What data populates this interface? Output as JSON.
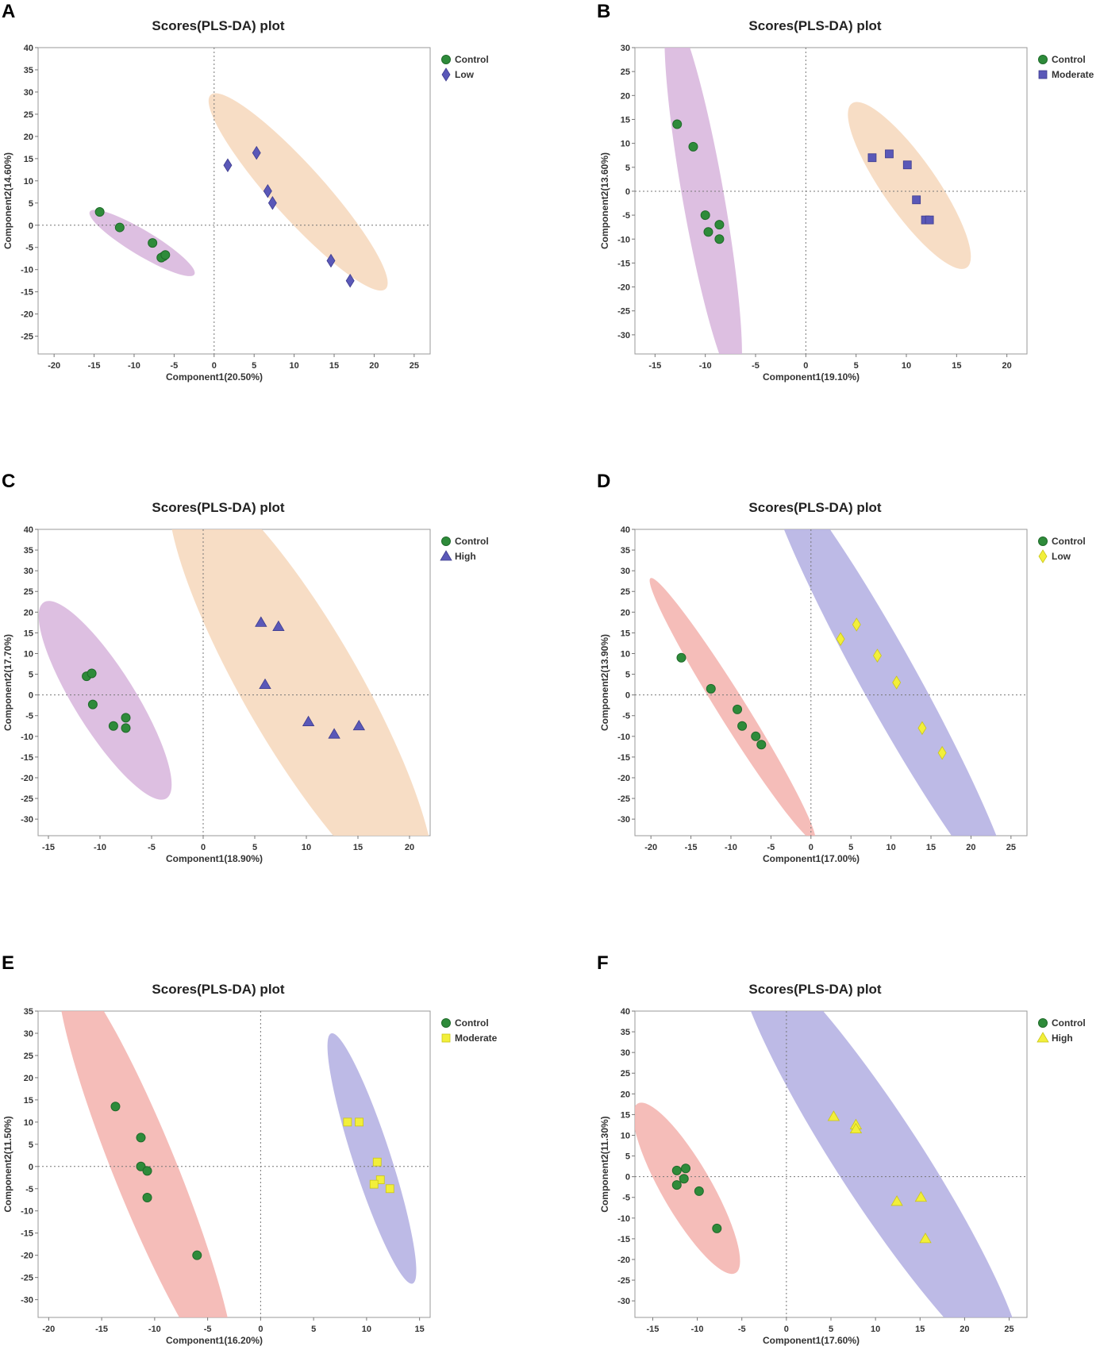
{
  "colors": {
    "control_marker": "#2e8b3a",
    "blue_marker": "#5a58b8",
    "yellow_marker": "#f2ef3a",
    "violet_ellipse": "#d7b4dc",
    "peach_ellipse": "#f6d7bb",
    "pink_ellipse": "#f3b1ad",
    "lavender_ellipse": "#b2aee2"
  },
  "chart_data": [
    {
      "panel": "A",
      "type": "scatter",
      "title": "Scores(PLS-DA) plot",
      "xlabel": "Component1(20.50%)",
      "ylabel": "Component2(14.60%)",
      "xlim": [
        -22,
        27
      ],
      "ylim": [
        -29,
        40
      ],
      "xticks": [
        -20,
        -15,
        -10,
        -5,
        0,
        5,
        10,
        15,
        20,
        25
      ],
      "yticks": [
        40,
        35,
        30,
        25,
        20,
        15,
        10,
        5,
        0,
        -5,
        -10,
        -15,
        -20,
        -25
      ],
      "legend_position": "top-right",
      "ellipses": [
        {
          "group": "Control",
          "color": "violet",
          "cx": -9,
          "cy": -4,
          "rx": 9.8,
          "ry": 2.0,
          "angle": -31
        },
        {
          "group": "Low",
          "color": "peach",
          "cx": 10.5,
          "cy": 7.5,
          "rx": 21,
          "ry": 4.2,
          "angle": -48
        }
      ],
      "series": [
        {
          "name": "Control",
          "marker": "circle",
          "color": "green",
          "points": [
            [
              -14.3,
              3
            ],
            [
              -11.8,
              -0.5
            ],
            [
              -7.7,
              -4
            ],
            [
              -6.3,
              -7
            ],
            [
              -6.6,
              -7.3
            ],
            [
              -6.1,
              -6.7
            ]
          ]
        },
        {
          "name": "Low",
          "marker": "diamond",
          "color": "blue",
          "points": [
            [
              1.7,
              13.5
            ],
            [
              5.3,
              16.3
            ],
            [
              6.7,
              7.7
            ],
            [
              7.3,
              5
            ],
            [
              14.6,
              -8
            ],
            [
              17,
              -12.5
            ]
          ]
        }
      ]
    },
    {
      "panel": "B",
      "type": "scatter",
      "title": "Scores(PLS-DA) plot",
      "xlabel": "Component1(19.10%)",
      "ylabel": "Component2(13.60%)",
      "xlim": [
        -17,
        22
      ],
      "ylim": [
        -34,
        30
      ],
      "xticks": [
        -15,
        -10,
        -5,
        0,
        5,
        10,
        15,
        20
      ],
      "yticks": [
        30,
        25,
        20,
        15,
        10,
        5,
        0,
        -5,
        -10,
        -15,
        -20,
        -25,
        -30
      ],
      "legend_position": "top-right",
      "ellipses": [
        {
          "group": "Control",
          "color": "violet",
          "cx": -10.2,
          "cy": -1.2,
          "rx": 25.5,
          "ry": 2.8,
          "angle": -80
        },
        {
          "group": "Moderate",
          "color": "peach",
          "cx": 10.3,
          "cy": 1.2,
          "rx": 13.5,
          "ry": 3.6,
          "angle": -55
        }
      ],
      "series": [
        {
          "name": "Control",
          "marker": "circle",
          "color": "green",
          "points": [
            [
              -12.8,
              14
            ],
            [
              -11.2,
              9.3
            ],
            [
              -10,
              -5
            ],
            [
              -9.7,
              -8.5
            ],
            [
              -8.6,
              -7
            ],
            [
              -8.6,
              -10
            ]
          ]
        },
        {
          "name": "Moderate",
          "marker": "square",
          "color": "blue",
          "points": [
            [
              6.6,
              7
            ],
            [
              8.3,
              7.8
            ],
            [
              10.1,
              5.5
            ],
            [
              11,
              -1.8
            ],
            [
              11.9,
              -6
            ],
            [
              12.3,
              -6
            ]
          ]
        }
      ]
    },
    {
      "panel": "C",
      "type": "scatter",
      "title": "Scores(PLS-DA) plot",
      "xlabel": "Component1(18.90%)",
      "ylabel": "Component2(17.70%)",
      "xlim": [
        -16,
        22
      ],
      "ylim": [
        -34,
        40
      ],
      "xticks": [
        -15,
        -10,
        -5,
        0,
        5,
        10,
        15,
        20
      ],
      "yticks": [
        40,
        35,
        30,
        25,
        20,
        15,
        10,
        5,
        0,
        -5,
        -10,
        -15,
        -20,
        -25,
        -30
      ],
      "legend_position": "top-right",
      "ellipses": [
        {
          "group": "Control",
          "color": "violet",
          "cx": -9.5,
          "cy": -1.3,
          "rx": 16,
          "ry": 4.2,
          "angle": -58
        },
        {
          "group": "High",
          "color": "peach",
          "cx": 9.5,
          "cy": 2,
          "rx": 34,
          "ry": 8,
          "angle": -60
        }
      ],
      "series": [
        {
          "name": "Control",
          "marker": "circle",
          "color": "green",
          "points": [
            [
              -11.3,
              4.5
            ],
            [
              -10.8,
              5.2
            ],
            [
              -10.7,
              -2.3
            ],
            [
              -8.7,
              -7.5
            ],
            [
              -7.5,
              -5.5
            ],
            [
              -7.5,
              -8
            ]
          ]
        },
        {
          "name": "High",
          "marker": "triangle",
          "color": "blue",
          "points": [
            [
              5.6,
              17.5
            ],
            [
              7.3,
              16.5
            ],
            [
              6,
              2.5
            ],
            [
              10.2,
              -6.5
            ],
            [
              12.7,
              -9.5
            ],
            [
              15.1,
              -7.5
            ]
          ]
        }
      ]
    },
    {
      "panel": "D",
      "type": "scatter",
      "title": "Scores(PLS-DA) plot",
      "xlabel": "Component1(17.00%)",
      "ylabel": "Component2(13.90%)",
      "xlim": [
        -22,
        27
      ],
      "ylim": [
        -34,
        40
      ],
      "xticks": [
        -20,
        -15,
        -10,
        -5,
        0,
        5,
        10,
        15,
        20,
        25
      ],
      "yticks": [
        40,
        35,
        30,
        25,
        20,
        15,
        10,
        5,
        0,
        -5,
        -10,
        -15,
        -20,
        -25,
        -30
      ],
      "legend_position": "top-right",
      "ellipses": [
        {
          "group": "Control",
          "color": "pink",
          "cx": -9.8,
          "cy": -3.5,
          "rx": 25.5,
          "ry": 2.3,
          "angle": -58
        },
        {
          "group": "Low",
          "color": "lavender",
          "cx": 9.8,
          "cy": 3.5,
          "rx": 41,
          "ry": 4.6,
          "angle": -61
        }
      ],
      "series": [
        {
          "name": "Control",
          "marker": "circle",
          "color": "green",
          "points": [
            [
              -16.2,
              9
            ],
            [
              -12.5,
              1.5
            ],
            [
              -9.2,
              -3.5
            ],
            [
              -8.6,
              -7.5
            ],
            [
              -6.9,
              -10
            ],
            [
              -6.2,
              -12
            ]
          ]
        },
        {
          "name": "Low",
          "marker": "diamond",
          "color": "yellow",
          "points": [
            [
              3.7,
              13.5
            ],
            [
              5.7,
              17
            ],
            [
              8.3,
              9.5
            ],
            [
              10.7,
              3
            ],
            [
              13.9,
              -8
            ],
            [
              16.4,
              -14
            ]
          ]
        }
      ]
    },
    {
      "panel": "E",
      "type": "scatter",
      "title": "Scores(PLS-DA) plot",
      "xlabel": "Component1(16.20%)",
      "ylabel": "Component2(11.50%)",
      "xlim": [
        -21,
        16
      ],
      "ylim": [
        -34,
        35
      ],
      "xticks": [
        -20,
        -15,
        -10,
        -5,
        0,
        5,
        10,
        15
      ],
      "yticks": [
        35,
        30,
        25,
        20,
        15,
        10,
        5,
        0,
        -5,
        -10,
        -15,
        -20,
        -25,
        -30
      ],
      "legend_position": "top-right",
      "ellipses": [
        {
          "group": "Control",
          "color": "pink",
          "cx": -10.8,
          "cy": -1.3,
          "rx": 29.5,
          "ry": 4.2,
          "angle": -68
        },
        {
          "group": "Moderate",
          "color": "lavender",
          "cx": 10.5,
          "cy": 1.8,
          "rx": 17.5,
          "ry": 2.5,
          "angle": -72
        }
      ],
      "series": [
        {
          "name": "Control",
          "marker": "circle",
          "color": "green",
          "points": [
            [
              -13.7,
              13.5
            ],
            [
              -11.3,
              6.5
            ],
            [
              -11.3,
              0
            ],
            [
              -10.7,
              -1
            ],
            [
              -10.7,
              -7
            ],
            [
              -6,
              -20
            ]
          ]
        },
        {
          "name": "Moderate",
          "marker": "square",
          "color": "yellow",
          "points": [
            [
              8.2,
              10
            ],
            [
              9.3,
              10
            ],
            [
              11,
              1
            ],
            [
              11.3,
              -3
            ],
            [
              10.7,
              -4
            ],
            [
              12.2,
              -5
            ]
          ]
        }
      ]
    },
    {
      "panel": "F",
      "type": "scatter",
      "title": "Scores(PLS-DA) plot",
      "xlabel": "Component1(17.60%)",
      "ylabel": "Component2(11.30%)",
      "xlim": [
        -17,
        27
      ],
      "ylim": [
        -34,
        40
      ],
      "xticks": [
        -15,
        -10,
        -5,
        0,
        5,
        10,
        15,
        20,
        25
      ],
      "yticks": [
        40,
        35,
        30,
        25,
        20,
        15,
        10,
        5,
        0,
        -5,
        -10,
        -15,
        -20,
        -25,
        -30
      ],
      "legend_position": "top-right",
      "ellipses": [
        {
          "group": "Control",
          "color": "pink",
          "cx": -11.2,
          "cy": -2.8,
          "rx": 15,
          "ry": 3.8,
          "angle": -60
        },
        {
          "group": "High",
          "color": "lavender",
          "cx": 10.5,
          "cy": 4,
          "rx": 39,
          "ry": 6.5,
          "angle": -57
        }
      ],
      "series": [
        {
          "name": "Control",
          "marker": "circle",
          "color": "green",
          "points": [
            [
              -12.3,
              1.5
            ],
            [
              -11.3,
              2
            ],
            [
              -11.5,
              -0.5
            ],
            [
              -12.3,
              -2
            ],
            [
              -9.8,
              -3.5
            ],
            [
              -7.8,
              -12.5
            ]
          ]
        },
        {
          "name": "High",
          "marker": "triangle",
          "color": "yellow",
          "points": [
            [
              5.3,
              14.5
            ],
            [
              7.8,
              12.5
            ],
            [
              7.8,
              11.5
            ],
            [
              12.4,
              -6
            ],
            [
              15.1,
              -5
            ],
            [
              15.6,
              -15
            ]
          ]
        }
      ]
    }
  ],
  "legends": [
    {
      "panel": "A",
      "items": [
        "Control",
        "Low"
      ]
    },
    {
      "panel": "B",
      "items": [
        "Control",
        "Moderate"
      ]
    },
    {
      "panel": "C",
      "items": [
        "Control",
        "High"
      ]
    },
    {
      "panel": "D",
      "items": [
        "Control",
        "Low"
      ]
    },
    {
      "panel": "E",
      "items": [
        "Control",
        "Moderate"
      ]
    },
    {
      "panel": "F",
      "items": [
        "Control",
        "High"
      ]
    }
  ]
}
